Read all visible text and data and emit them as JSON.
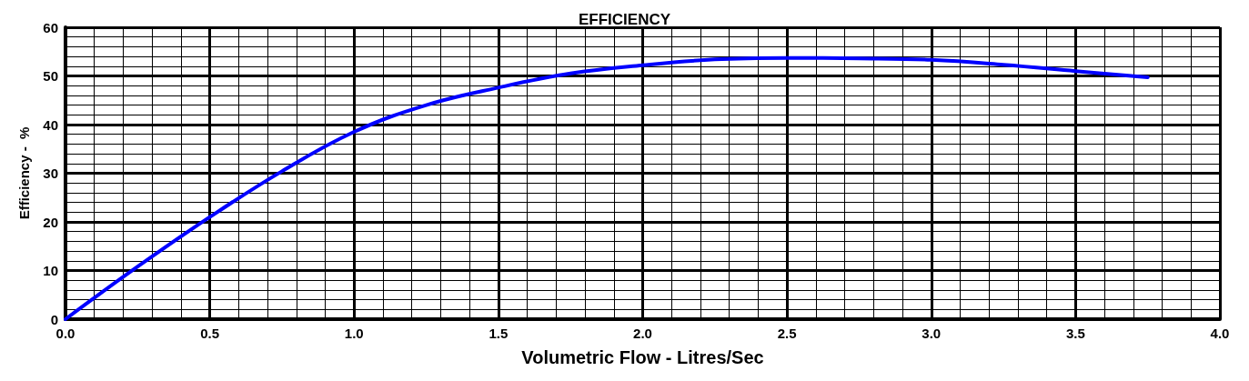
{
  "chart_data": {
    "type": "line",
    "title": "EFFICIENCY",
    "xlabel": "Volumetric Flow - Litres/Sec",
    "ylabel": "Efficiency -  %",
    "xlim": [
      0,
      4
    ],
    "xticks": [
      {
        "value": 0,
        "label": "0.0"
      },
      {
        "value": 0.5,
        "label": "0.5"
      },
      {
        "value": 1,
        "label": "1.0"
      },
      {
        "value": 1.5,
        "label": "1.5"
      },
      {
        "value": 2,
        "label": "2.0"
      },
      {
        "value": 2.5,
        "label": "2.5"
      },
      {
        "value": 3,
        "label": "3.0"
      },
      {
        "value": 3.5,
        "label": "3.5"
      },
      {
        "value": 4,
        "label": "4.0"
      }
    ],
    "ylim": [
      0,
      60
    ],
    "yticks": [
      0,
      10,
      20,
      30,
      40,
      50,
      60
    ],
    "grid": true,
    "marker": "none",
    "line_style": "solid",
    "series": [
      {
        "color": "#0000ff",
        "x": [
          0,
          0.25,
          0.5,
          0.75,
          1,
          1.25,
          1.5,
          1.75,
          2,
          2.25,
          2.5,
          2.75,
          3,
          3.25,
          3.5,
          3.75
        ],
        "values": [
          0,
          10.8,
          21,
          30.4,
          38.5,
          44,
          47.6,
          50.5,
          52.2,
          53.4,
          53.7,
          53.6,
          53.3,
          52.3,
          51,
          49.7
        ]
      }
    ]
  }
}
